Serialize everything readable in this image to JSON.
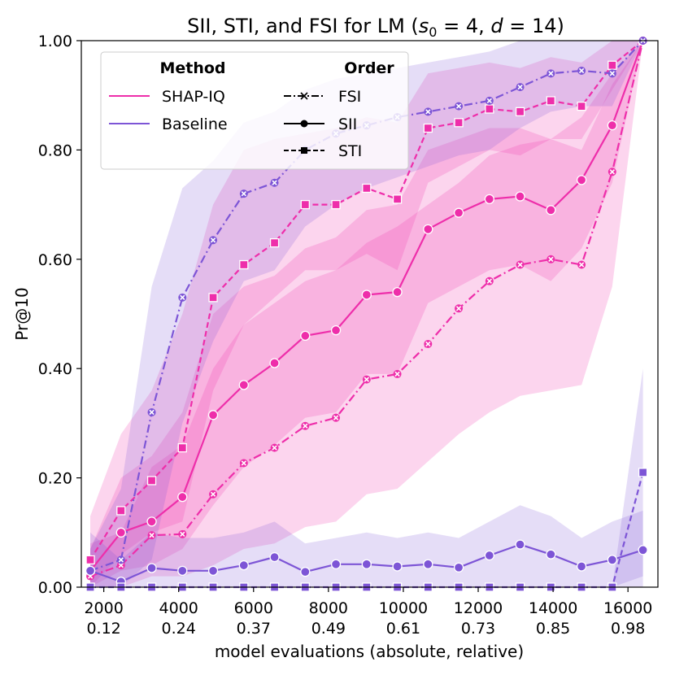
{
  "chart_data": {
    "type": "line",
    "title": "SII, STI, and FSI for LM (s₀ = 4, d = 14)",
    "title_parts": {
      "prefix": "SII, STI, and FSI for LM (",
      "s_var": "s",
      "s_sub": "0",
      "s_eq": " = 4, ",
      "d_var": "d",
      "d_eq": " = 14)"
    },
    "xlabel": "model evaluations (absolute, relative)",
    "ylabel": "Pr@10",
    "xlim": [
      1400,
      16800
    ],
    "ylim": [
      0,
      1.0
    ],
    "x_ticks": [
      {
        "value": 2000,
        "absolute": "2000",
        "relative": "0.12"
      },
      {
        "value": 4000,
        "absolute": "4000",
        "relative": "0.24"
      },
      {
        "value": 6000,
        "absolute": "6000",
        "relative": "0.37"
      },
      {
        "value": 8000,
        "absolute": "8000",
        "relative": "0.49"
      },
      {
        "value": 10000,
        "absolute": "10000",
        "relative": "0.61"
      },
      {
        "value": 12000,
        "absolute": "12000",
        "relative": "0.73"
      },
      {
        "value": 14000,
        "absolute": "14000",
        "relative": "0.85"
      },
      {
        "value": 16000,
        "absolute": "16000",
        "relative": "0.98"
      }
    ],
    "y_ticks": [
      {
        "value": 0.0,
        "label": "0.00"
      },
      {
        "value": 0.2,
        "label": "0.20"
      },
      {
        "value": 0.4,
        "label": "0.40"
      },
      {
        "value": 0.6,
        "label": "0.60"
      },
      {
        "value": 0.8,
        "label": "0.80"
      },
      {
        "value": 1.0,
        "label": "1.00"
      }
    ],
    "x": [
      1640,
      2460,
      3280,
      4100,
      4920,
      5740,
      6560,
      7380,
      8200,
      9020,
      9840,
      10660,
      11480,
      12300,
      13120,
      13940,
      14760,
      15580,
      16400
    ],
    "colors": {
      "shap_iq": "#ee2eaa",
      "baseline": "#7d55d6"
    },
    "legend": {
      "method_title": "Method",
      "order_title": "Order",
      "methods": [
        {
          "label": "SHAP-IQ",
          "color": "#ee2eaa"
        },
        {
          "label": "Baseline",
          "color": "#7d55d6"
        }
      ],
      "orders": [
        {
          "label": "FSI",
          "marker": "x",
          "dash": "dashdot"
        },
        {
          "label": "SII",
          "marker": "o",
          "dash": "solid"
        },
        {
          "label": "STI",
          "marker": "s",
          "dash": "dashed"
        }
      ]
    },
    "series": [
      {
        "name": "SHAP-IQ STI",
        "method": "SHAP-IQ",
        "order": "STI",
        "color": "#ee2eaa",
        "dash": "dashed",
        "marker": "s",
        "values": [
          0.05,
          0.14,
          0.195,
          0.255,
          0.53,
          0.59,
          0.63,
          0.7,
          0.7,
          0.73,
          0.71,
          0.84,
          0.85,
          0.875,
          0.87,
          0.89,
          0.88,
          0.955,
          1.0
        ],
        "lower": [
          0.0,
          0.06,
          0.1,
          0.12,
          0.36,
          0.48,
          0.53,
          0.58,
          0.58,
          0.61,
          0.58,
          0.74,
          0.77,
          0.8,
          0.79,
          0.82,
          0.82,
          0.91,
          1.0
        ],
        "upper": [
          0.13,
          0.28,
          0.36,
          0.5,
          0.7,
          0.8,
          0.82,
          0.83,
          0.84,
          0.86,
          0.85,
          0.94,
          0.95,
          0.96,
          0.95,
          0.97,
          0.96,
          1.0,
          1.0
        ]
      },
      {
        "name": "SHAP-IQ SII",
        "method": "SHAP-IQ",
        "order": "SII",
        "color": "#ee2eaa",
        "dash": "solid",
        "marker": "o",
        "values": [
          0.03,
          0.1,
          0.12,
          0.165,
          0.315,
          0.37,
          0.41,
          0.46,
          0.47,
          0.535,
          0.54,
          0.655,
          0.685,
          0.71,
          0.715,
          0.69,
          0.745,
          0.845,
          1.0
        ],
        "lower": [
          0.0,
          0.03,
          0.04,
          0.07,
          0.15,
          0.22,
          0.26,
          0.31,
          0.32,
          0.39,
          0.39,
          0.52,
          0.55,
          0.58,
          0.59,
          0.56,
          0.62,
          0.74,
          1.0
        ],
        "upper": [
          0.07,
          0.2,
          0.24,
          0.32,
          0.5,
          0.55,
          0.57,
          0.62,
          0.64,
          0.69,
          0.7,
          0.8,
          0.82,
          0.84,
          0.84,
          0.82,
          0.86,
          0.94,
          1.0
        ]
      },
      {
        "name": "SHAP-IQ FSI",
        "method": "SHAP-IQ",
        "order": "FSI",
        "color": "#ee2eaa",
        "dash": "dashdot",
        "marker": "x",
        "values": [
          0.02,
          0.04,
          0.095,
          0.097,
          0.17,
          0.227,
          0.255,
          0.295,
          0.31,
          0.38,
          0.39,
          0.445,
          0.51,
          0.56,
          0.59,
          0.6,
          0.59,
          0.76,
          1.0
        ],
        "lower": [
          0.0,
          0.0,
          0.02,
          0.02,
          0.04,
          0.07,
          0.08,
          0.11,
          0.12,
          0.17,
          0.18,
          0.23,
          0.28,
          0.32,
          0.35,
          0.36,
          0.37,
          0.55,
          1.0
        ],
        "upper": [
          0.08,
          0.1,
          0.22,
          0.26,
          0.4,
          0.48,
          0.52,
          0.56,
          0.58,
          0.63,
          0.66,
          0.7,
          0.74,
          0.79,
          0.81,
          0.82,
          0.8,
          0.92,
          1.0
        ]
      },
      {
        "name": "Baseline FSI",
        "method": "Baseline",
        "order": "FSI",
        "color": "#7d55d6",
        "dash": "dashdot",
        "marker": "x",
        "values": [
          0.03,
          0.05,
          0.32,
          0.53,
          0.635,
          0.72,
          0.74,
          0.8,
          0.83,
          0.845,
          0.86,
          0.87,
          0.88,
          0.89,
          0.915,
          0.94,
          0.945,
          0.94,
          1.0
        ],
        "lower": [
          0.0,
          0.0,
          0.05,
          0.3,
          0.45,
          0.56,
          0.58,
          0.66,
          0.7,
          0.73,
          0.75,
          0.77,
          0.79,
          0.8,
          0.84,
          0.87,
          0.88,
          0.88,
          1.0
        ],
        "upper": [
          0.07,
          0.18,
          0.55,
          0.73,
          0.78,
          0.85,
          0.87,
          0.91,
          0.93,
          0.94,
          0.95,
          0.96,
          0.97,
          0.98,
          1.0,
          1.0,
          1.0,
          1.0,
          1.0
        ]
      },
      {
        "name": "Baseline SII",
        "method": "Baseline",
        "order": "SII",
        "color": "#7d55d6",
        "dash": "solid",
        "marker": "o",
        "values": [
          0.03,
          0.01,
          0.035,
          0.03,
          0.03,
          0.04,
          0.055,
          0.028,
          0.042,
          0.042,
          0.038,
          0.042,
          0.036,
          0.058,
          0.078,
          0.06,
          0.038,
          0.05,
          0.068
        ],
        "lower": [
          0.0,
          0.0,
          0.0,
          0.0,
          0.0,
          0.0,
          0.0,
          0.0,
          0.0,
          0.0,
          0.0,
          0.0,
          0.0,
          0.0,
          0.0,
          0.0,
          0.0,
          0.0,
          0.0
        ],
        "upper": [
          0.1,
          0.05,
          0.1,
          0.09,
          0.09,
          0.1,
          0.12,
          0.08,
          0.09,
          0.1,
          0.09,
          0.1,
          0.09,
          0.12,
          0.15,
          0.13,
          0.09,
          0.12,
          0.14
        ]
      },
      {
        "name": "Baseline STI",
        "method": "Baseline",
        "order": "STI",
        "color": "#7d55d6",
        "dash": "dashed",
        "marker": "s",
        "values": [
          0.0,
          0.0,
          0.0,
          0.0,
          0.0,
          0.0,
          0.0,
          0.0,
          0.0,
          0.0,
          0.0,
          0.0,
          0.0,
          0.0,
          0.0,
          0.0,
          0.0,
          0.0,
          0.21
        ],
        "lower": [
          0.0,
          0.0,
          0.0,
          0.0,
          0.0,
          0.0,
          0.0,
          0.0,
          0.0,
          0.0,
          0.0,
          0.0,
          0.0,
          0.0,
          0.0,
          0.0,
          0.0,
          0.0,
          0.02
        ],
        "upper": [
          0.0,
          0.0,
          0.0,
          0.0,
          0.0,
          0.0,
          0.0,
          0.0,
          0.0,
          0.0,
          0.0,
          0.0,
          0.0,
          0.0,
          0.0,
          0.0,
          0.0,
          0.0,
          0.4
        ]
      }
    ]
  }
}
